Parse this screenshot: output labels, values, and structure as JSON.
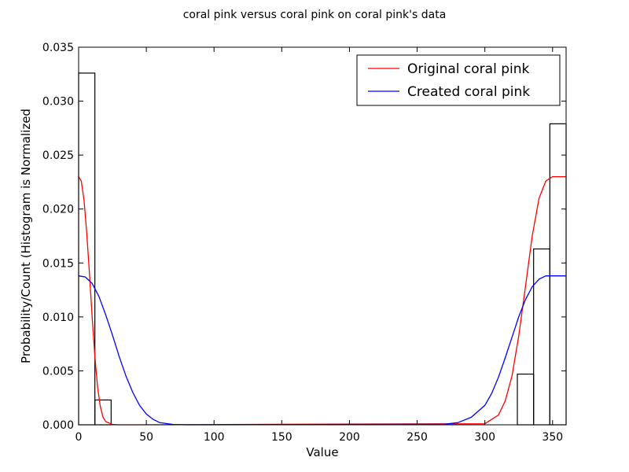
{
  "chart_data": {
    "type": "histogram+line",
    "title": "coral pink versus coral pink on coral pink's data",
    "xlabel": "Value",
    "ylabel": "Probability/Count (Histogram is Normalized",
    "xlim": [
      0,
      360
    ],
    "ylim": [
      0,
      0.035
    ],
    "xticks": [
      "0",
      "50",
      "100",
      "150",
      "200",
      "250",
      "300",
      "350"
    ],
    "xtick_values": [
      0,
      50,
      100,
      150,
      200,
      250,
      300,
      350
    ],
    "yticks": [
      "0.000",
      "0.005",
      "0.010",
      "0.015",
      "0.020",
      "0.025",
      "0.030",
      "0.035"
    ],
    "ytick_values": [
      0,
      0.005,
      0.01,
      0.015,
      0.02,
      0.025,
      0.03,
      0.035
    ],
    "grid": false,
    "legend_position": "top-right",
    "histogram": {
      "bin_width": 12,
      "bins": [
        {
          "x0": 0,
          "x1": 12,
          "value": 0.0326
        },
        {
          "x0": 12,
          "x1": 24,
          "value": 0.0023
        },
        {
          "x0": 324,
          "x1": 336,
          "value": 0.0047
        },
        {
          "x0": 336,
          "x1": 348,
          "value": 0.0163
        },
        {
          "x0": 348,
          "x1": 360,
          "value": 0.0279
        }
      ]
    },
    "series": [
      {
        "name": "Original coral pink",
        "color": "#ff0000",
        "x": [
          0,
          2,
          4,
          6,
          8,
          10,
          12,
          14,
          16,
          18,
          20,
          25,
          30,
          40,
          300,
          310,
          315,
          320,
          325,
          330,
          335,
          340,
          345,
          350,
          355,
          360
        ],
        "y": [
          0.023,
          0.0226,
          0.0208,
          0.0178,
          0.014,
          0.01,
          0.0063,
          0.0035,
          0.0017,
          0.0007,
          0.0003,
          2e-05,
          0.0,
          0.0,
          0.0001,
          0.0009,
          0.0022,
          0.0045,
          0.0082,
          0.0128,
          0.0175,
          0.021,
          0.0226,
          0.023,
          0.023,
          0.023
        ]
      },
      {
        "name": "Created coral pink",
        "color": "#0000ff",
        "x": [
          0,
          5,
          10,
          15,
          20,
          25,
          30,
          35,
          40,
          45,
          50,
          55,
          60,
          70,
          80,
          270,
          280,
          290,
          300,
          305,
          310,
          315,
          320,
          325,
          330,
          335,
          340,
          345,
          350,
          355,
          360
        ],
        "y": [
          0.0138,
          0.0137,
          0.0131,
          0.0119,
          0.0102,
          0.0083,
          0.0063,
          0.0045,
          0.003,
          0.0018,
          0.001,
          0.0005,
          0.0002,
          3e-05,
          0.0,
          5e-05,
          0.0002,
          0.0007,
          0.0018,
          0.0029,
          0.0044,
          0.0062,
          0.0081,
          0.01,
          0.0116,
          0.0128,
          0.0135,
          0.0138,
          0.0138,
          0.0138,
          0.0138
        ]
      }
    ]
  }
}
